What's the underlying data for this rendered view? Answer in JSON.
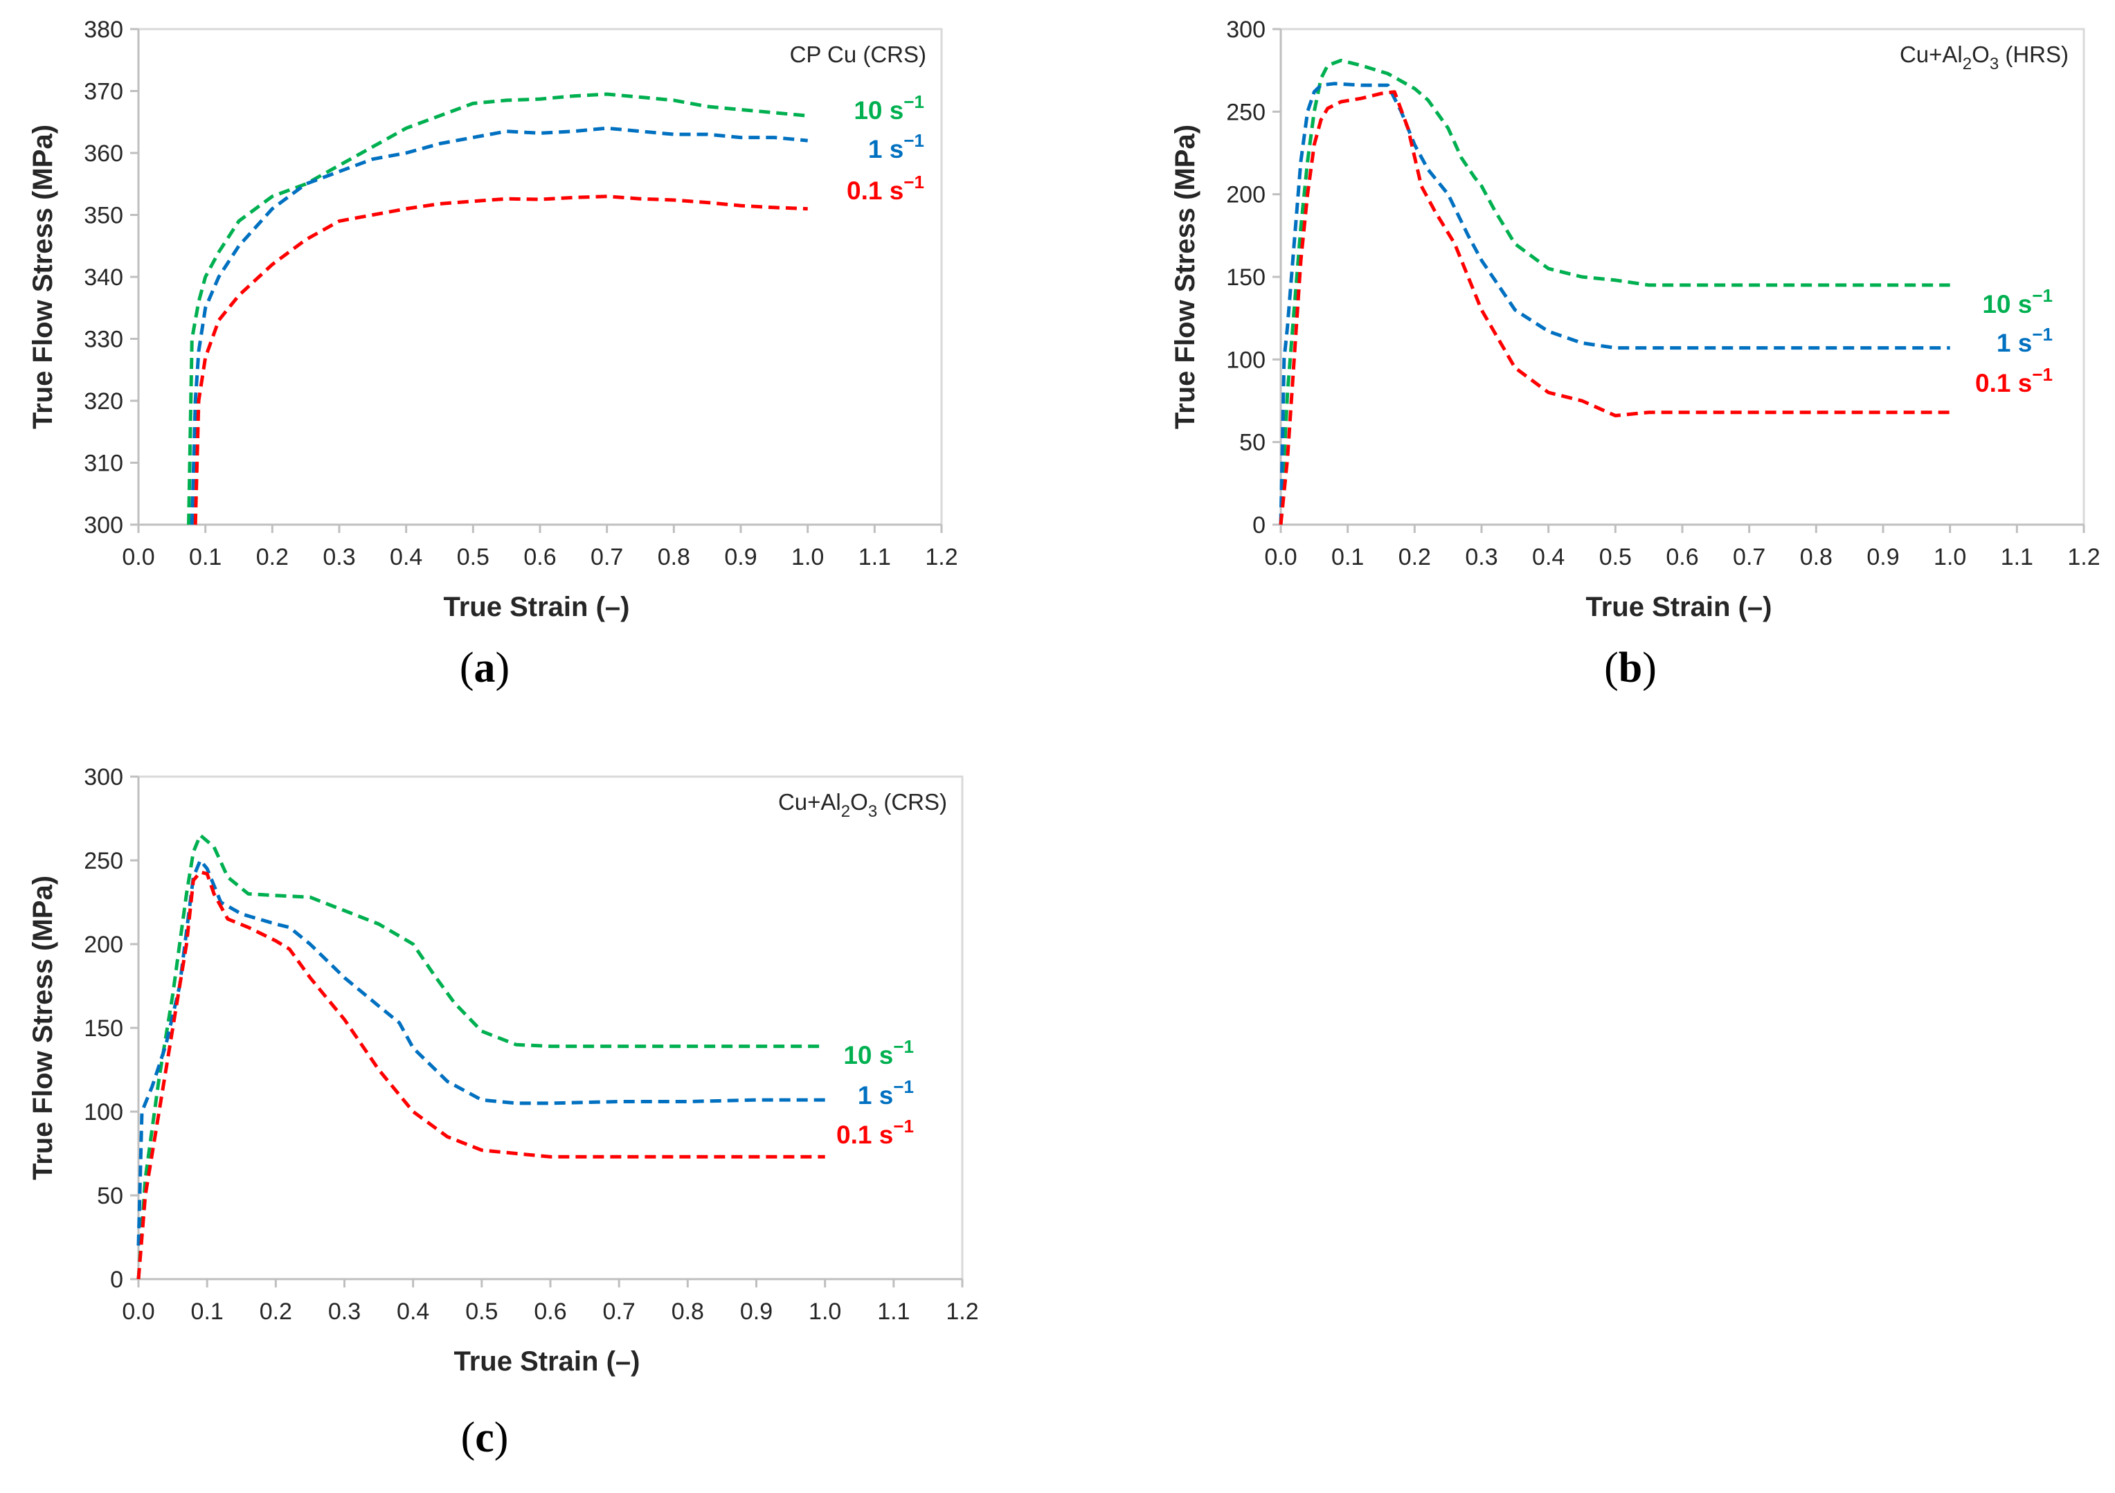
{
  "chart_data": [
    {
      "id": "a",
      "type": "line",
      "panel_label": "a",
      "title": {
        "text": "CP Cu (CRS)",
        "sub": "",
        "tail": ""
      },
      "xlabel": "True Strain (–)",
      "ylabel": "True Flow Stress (MPa)",
      "xlim": [
        0,
        1.2
      ],
      "ylim": [
        300,
        380
      ],
      "xticks": [
        0,
        0.1,
        0.2,
        0.3,
        0.4,
        0.5,
        0.6,
        0.7,
        0.8,
        0.9,
        1.0,
        1.1,
        1.2
      ],
      "yticks": [
        300,
        310,
        320,
        330,
        340,
        350,
        360,
        370,
        380
      ],
      "xtick_labels": [
        "0.0",
        "0.1",
        "0.2",
        "0.3",
        "0.4",
        "0.5",
        "0.6",
        "0.7",
        "0.8",
        "0.9",
        "1.0",
        "1.1",
        "1.2"
      ],
      "ytick_labels": [
        "300",
        "310",
        "320",
        "330",
        "340",
        "350",
        "360",
        "370",
        "380"
      ],
      "series": [
        {
          "name": "10 s⁻¹",
          "label_main": "10 s",
          "label_sup": "−1",
          "color": "#00b050",
          "x": [
            0.075,
            0.08,
            0.09,
            0.1,
            0.12,
            0.15,
            0.2,
            0.25,
            0.3,
            0.35,
            0.4,
            0.45,
            0.5,
            0.55,
            0.6,
            0.65,
            0.7,
            0.75,
            0.8,
            0.85,
            0.9,
            0.95,
            1.0
          ],
          "y": [
            300,
            330,
            336,
            340,
            344,
            349,
            353,
            355,
            358,
            361,
            364,
            366,
            368,
            368.5,
            368.7,
            369.2,
            369.5,
            369,
            368.5,
            367.5,
            367,
            366.5,
            366
          ]
        },
        {
          "name": "1 s⁻¹",
          "label_main": "1 s",
          "label_sup": "−1",
          "color": "#0070c0",
          "x": [
            0.08,
            0.085,
            0.09,
            0.1,
            0.12,
            0.15,
            0.2,
            0.25,
            0.3,
            0.35,
            0.4,
            0.45,
            0.5,
            0.55,
            0.6,
            0.65,
            0.7,
            0.75,
            0.8,
            0.85,
            0.9,
            0.95,
            1.0
          ],
          "y": [
            300,
            320,
            328,
            335,
            340,
            345,
            351,
            355,
            357,
            359,
            360,
            361.5,
            362.5,
            363.5,
            363.2,
            363.5,
            364,
            363.5,
            363,
            363,
            362.5,
            362.5,
            362
          ]
        },
        {
          "name": "0.1 s⁻¹",
          "label_main": "0.1 s",
          "label_sup": "−1",
          "color": "#ff0000",
          "x": [
            0.085,
            0.09,
            0.1,
            0.12,
            0.15,
            0.2,
            0.25,
            0.3,
            0.35,
            0.4,
            0.45,
            0.5,
            0.55,
            0.6,
            0.65,
            0.7,
            0.75,
            0.8,
            0.85,
            0.9,
            0.95,
            1.0
          ],
          "y": [
            300,
            320,
            327,
            333,
            337,
            342,
            346,
            349,
            350,
            351,
            351.8,
            352.2,
            352.6,
            352.5,
            352.8,
            353,
            352.6,
            352.4,
            352,
            351.5,
            351.2,
            351
          ]
        }
      ]
    },
    {
      "id": "b",
      "type": "line",
      "panel_label": "b",
      "title": {
        "text": "Cu+Al",
        "sub": "2",
        "mid": "O",
        "sub2": "3",
        "tail": " (HRS)"
      },
      "xlabel": "True Strain (–)",
      "ylabel": "True Flow Stress (MPa)",
      "xlim": [
        0,
        1.2
      ],
      "ylim": [
        0,
        300
      ],
      "xticks": [
        0,
        0.1,
        0.2,
        0.3,
        0.4,
        0.5,
        0.6,
        0.7,
        0.8,
        0.9,
        1.0,
        1.1,
        1.2
      ],
      "yticks": [
        0,
        50,
        100,
        150,
        200,
        250,
        300
      ],
      "xtick_labels": [
        "0.0",
        "0.1",
        "0.2",
        "0.3",
        "0.4",
        "0.5",
        "0.6",
        "0.7",
        "0.8",
        "0.9",
        "1.0",
        "1.1",
        "1.2"
      ],
      "ytick_labels": [
        "0",
        "50",
        "100",
        "150",
        "200",
        "250",
        "300"
      ],
      "series": [
        {
          "name": "10 s⁻¹",
          "label_main": "10 s",
          "label_sup": "−1",
          "color": "#00b050",
          "x": [
            0.0,
            0.01,
            0.02,
            0.03,
            0.04,
            0.05,
            0.06,
            0.07,
            0.09,
            0.12,
            0.16,
            0.2,
            0.22,
            0.25,
            0.27,
            0.29,
            0.3,
            0.32,
            0.35,
            0.4,
            0.45,
            0.5,
            0.55,
            0.6,
            0.7,
            0.8,
            0.9,
            1.0
          ],
          "y": [
            0,
            80,
            130,
            180,
            220,
            250,
            270,
            278,
            281,
            278,
            273,
            264,
            257,
            240,
            222,
            210,
            205,
            190,
            170,
            155,
            150,
            148,
            145,
            145,
            145,
            145,
            145,
            145
          ]
        },
        {
          "name": "1 s⁻¹",
          "label_main": "1 s",
          "label_sup": "−1",
          "color": "#0070c0",
          "x": [
            0.0,
            0.005,
            0.01,
            0.02,
            0.03,
            0.04,
            0.05,
            0.06,
            0.08,
            0.12,
            0.16,
            0.18,
            0.2,
            0.22,
            0.25,
            0.28,
            0.3,
            0.35,
            0.4,
            0.45,
            0.5,
            0.6,
            0.7,
            0.8,
            0.9,
            1.0
          ],
          "y": [
            0,
            100,
            120,
            170,
            220,
            250,
            262,
            266,
            267,
            266,
            266,
            250,
            230,
            215,
            200,
            175,
            160,
            130,
            117,
            110,
            107,
            107,
            107,
            107,
            107,
            107
          ]
        },
        {
          "name": "0.1 s⁻¹",
          "label_main": "0.1 s",
          "label_sup": "−1",
          "color": "#ff0000",
          "x": [
            0.0,
            0.01,
            0.02,
            0.03,
            0.04,
            0.05,
            0.06,
            0.07,
            0.09,
            0.12,
            0.15,
            0.17,
            0.19,
            0.21,
            0.23,
            0.26,
            0.3,
            0.35,
            0.4,
            0.45,
            0.5,
            0.55,
            0.6,
            0.7,
            0.8,
            0.9,
            1.0
          ],
          "y": [
            0,
            40,
            100,
            160,
            200,
            230,
            245,
            252,
            256,
            258,
            261,
            262,
            240,
            205,
            190,
            170,
            130,
            95,
            80,
            75,
            66,
            68,
            68,
            68,
            68,
            68,
            68
          ]
        }
      ]
    },
    {
      "id": "c",
      "type": "line",
      "panel_label": "c",
      "title": {
        "text": "Cu+Al",
        "sub": "2",
        "mid": "O",
        "sub2": "3",
        "tail": " (CRS)"
      },
      "xlabel": "True Strain (–)",
      "ylabel": "True Flow Stress (MPa)",
      "xlim": [
        0,
        1.2
      ],
      "ylim": [
        0,
        300
      ],
      "xticks": [
        0,
        0.1,
        0.2,
        0.3,
        0.4,
        0.5,
        0.6,
        0.7,
        0.8,
        0.9,
        1.0,
        1.1,
        1.2
      ],
      "yticks": [
        0,
        50,
        100,
        150,
        200,
        250,
        300
      ],
      "xtick_labels": [
        "0.0",
        "0.1",
        "0.2",
        "0.3",
        "0.4",
        "0.5",
        "0.6",
        "0.7",
        "0.8",
        "0.9",
        "1.0",
        "1.1",
        "1.2"
      ],
      "ytick_labels": [
        "0",
        "50",
        "100",
        "150",
        "200",
        "250",
        "300"
      ],
      "series": [
        {
          "name": "10 s⁻¹",
          "label_main": "10 s",
          "label_sup": "−1",
          "color": "#00b050",
          "x": [
            0.0,
            0.01,
            0.03,
            0.05,
            0.07,
            0.08,
            0.09,
            0.11,
            0.13,
            0.16,
            0.2,
            0.25,
            0.3,
            0.35,
            0.4,
            0.43,
            0.46,
            0.5,
            0.55,
            0.6,
            0.7,
            0.8,
            0.9,
            1.0
          ],
          "y": [
            0,
            60,
            120,
            170,
            230,
            255,
            265,
            258,
            240,
            230,
            229,
            228,
            220,
            212,
            200,
            182,
            165,
            148,
            140,
            139,
            139,
            139,
            139,
            139
          ]
        },
        {
          "name": "1 s⁻¹",
          "label_main": "1 s",
          "label_sup": "−1",
          "color": "#0070c0",
          "x": [
            0.0,
            0.005,
            0.02,
            0.04,
            0.06,
            0.08,
            0.09,
            0.1,
            0.12,
            0.15,
            0.2,
            0.22,
            0.25,
            0.3,
            0.35,
            0.38,
            0.4,
            0.45,
            0.5,
            0.55,
            0.6,
            0.7,
            0.8,
            0.9,
            1.0
          ],
          "y": [
            20,
            100,
            115,
            140,
            175,
            240,
            250,
            245,
            225,
            218,
            212,
            210,
            200,
            180,
            163,
            153,
            138,
            118,
            107,
            105,
            105,
            106,
            106,
            107,
            107
          ]
        },
        {
          "name": "0.1 s⁻¹",
          "label_main": "0.1 s",
          "label_sup": "−1",
          "color": "#ff0000",
          "x": [
            0.0,
            0.01,
            0.03,
            0.05,
            0.07,
            0.08,
            0.09,
            0.1,
            0.11,
            0.13,
            0.16,
            0.2,
            0.22,
            0.25,
            0.3,
            0.35,
            0.4,
            0.45,
            0.5,
            0.55,
            0.6,
            0.7,
            0.8,
            0.9,
            1.0
          ],
          "y": [
            0,
            50,
            100,
            150,
            200,
            238,
            243,
            242,
            230,
            215,
            210,
            202,
            197,
            180,
            155,
            125,
            100,
            85,
            77,
            75,
            73,
            73,
            73,
            73,
            73
          ]
        }
      ]
    }
  ]
}
